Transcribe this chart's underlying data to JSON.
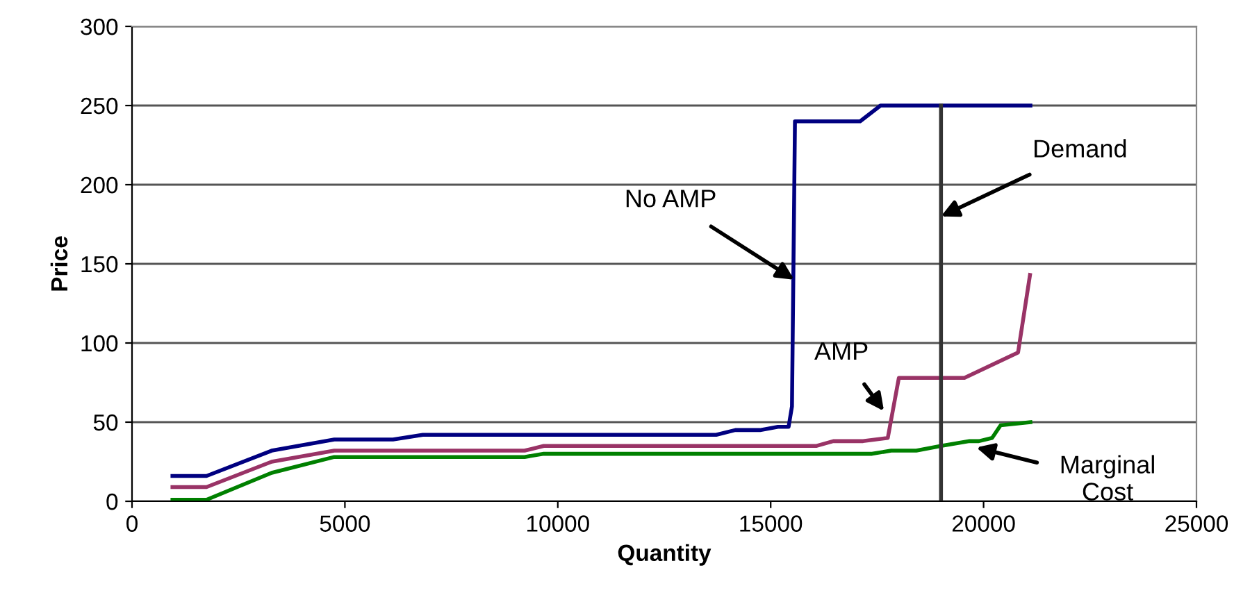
{
  "chart_data": {
    "type": "line",
    "xlabel": "Quantity",
    "ylabel": "Price",
    "series": [
      {
        "color": "#000080",
        "x": [
          950,
          1750,
          3280,
          4750,
          6130,
          6830,
          13720,
          14170,
          14750,
          15170,
          15420,
          15500,
          15570,
          17100,
          17580,
          21100
        ],
        "values": [
          16,
          16,
          32,
          39,
          39,
          42,
          42,
          45,
          45,
          47,
          47,
          60,
          240,
          240,
          250,
          250
        ]
      },
      {
        "color": "#993366",
        "x": [
          950,
          1750,
          3280,
          4750,
          9220,
          9670,
          16080,
          16470,
          17170,
          17750,
          18010,
          19550,
          20810,
          21090
        ],
        "values": [
          9,
          9,
          25,
          32,
          32,
          35,
          35,
          38,
          38,
          40,
          78,
          78,
          94,
          143
        ]
      },
      {
        "color": "#008000",
        "x": [
          950,
          1750,
          3280,
          4750,
          9220,
          9670,
          17380,
          17830,
          18420,
          19000,
          19670,
          19890,
          20200,
          20400,
          21100
        ],
        "values": [
          1,
          1,
          18,
          28,
          28,
          30,
          30,
          32,
          32,
          35,
          38,
          38,
          40,
          48,
          50
        ]
      },
      {
        "color": "#333333",
        "x": [
          19000,
          19000
        ],
        "values": [
          0,
          250
        ]
      }
    ],
    "annotations": [
      {
        "text": "No AMP",
        "x": 15550,
        "y": 140
      },
      {
        "text": "AMP",
        "x": 17660,
        "y": 57
      },
      {
        "text": "Demand",
        "x": 19000,
        "y": 180
      },
      {
        "text": "Marginal\nCost",
        "x": 19830,
        "y": 34
      }
    ],
    "xlim": [
      0,
      25000
    ],
    "xticks": [
      0,
      5000,
      10000,
      15000,
      20000,
      25000
    ],
    "ylim": [
      0,
      300
    ],
    "yticks": [
      0,
      50,
      100,
      150,
      200,
      250,
      300
    ],
    "grid": "y",
    "marker": "none",
    "line_style": "solid",
    "legend": false
  }
}
